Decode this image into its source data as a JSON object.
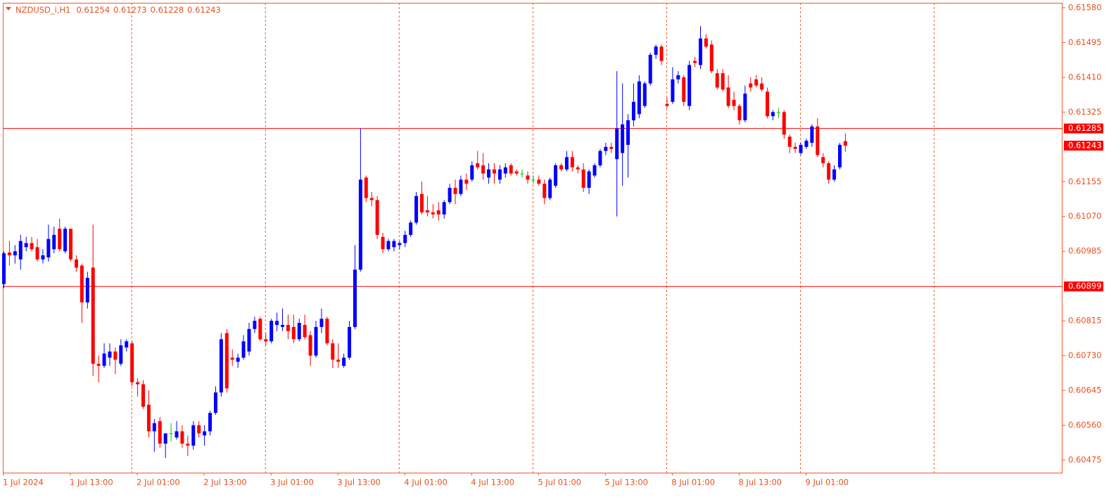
{
  "chart_data": {
    "type": "candlestick",
    "title": "NZDUSD_i,H1",
    "categories": [
      "1 Jul 2024",
      null,
      null,
      null,
      null,
      null,
      null,
      null,
      null,
      null,
      null,
      null,
      "1 Jul 13:00",
      null,
      null,
      null,
      null,
      null,
      null,
      null,
      null,
      null,
      null,
      null,
      "2 Jul 01:00",
      null,
      null,
      null,
      null,
      null,
      null,
      null,
      null,
      null,
      null,
      null,
      "2 Jul 13:00",
      null,
      null,
      null,
      null,
      null,
      null,
      null,
      null,
      null,
      null,
      null,
      "3 Jul 01:00",
      null,
      null,
      null,
      null,
      null,
      null,
      null,
      null,
      null,
      null,
      null,
      "3 Jul 13:00",
      null,
      null,
      null,
      null,
      null,
      null,
      null,
      null,
      null,
      null,
      null,
      "4 Jul 01:00",
      null,
      null,
      null,
      null,
      null,
      null,
      null,
      null,
      null,
      null,
      null,
      "4 Jul 13:00",
      null,
      null,
      null,
      null,
      null,
      null,
      null,
      null,
      null,
      null,
      null,
      "5 Jul 01:00",
      null,
      null,
      null,
      null,
      null,
      null,
      null,
      null,
      null,
      null,
      null,
      "5 Jul 13:00",
      null,
      null,
      null,
      null,
      null,
      null,
      null,
      null,
      null,
      null,
      null,
      "8 Jul 01:00",
      null,
      null,
      null,
      null,
      null,
      null,
      null,
      null,
      null,
      null,
      null,
      "8 Jul 13:00",
      null,
      null,
      null,
      null,
      null,
      null,
      null,
      null,
      null,
      null,
      null,
      "9 Jul 01:00",
      null,
      null,
      null,
      null,
      null,
      null,
      null
    ],
    "open": [
      0.60905,
      0.60982,
      0.60975,
      0.60965,
      0.60995,
      0.61005,
      0.60995,
      0.60965,
      0.6097,
      0.6099,
      0.6104,
      0.60985,
      0.6104,
      0.60965,
      0.6095,
      0.6086,
      0.60945,
      0.6071,
      0.60705,
      0.60725,
      0.6074,
      0.6071,
      0.6075,
      0.6076,
      0.60665,
      0.6066,
      0.6061,
      0.60545,
      0.6057,
      0.60515,
      0.6054,
      0.6053,
      0.60545,
      0.60515,
      0.6051,
      0.6056,
      0.60535,
      0.60545,
      0.6059,
      0.6064,
      0.60785,
      0.60725,
      0.60715,
      0.60725,
      0.6074,
      0.60795,
      0.6082,
      0.6077,
      0.60765,
      0.60805,
      0.608,
      0.60805,
      0.608,
      0.6077,
      0.60805,
      0.6078,
      0.6073,
      0.608,
      0.6082,
      0.6076,
      0.6072,
      0.60705,
      0.60725,
      0.608,
      0.6094,
      0.61165,
      0.61115,
      0.6111,
      0.6102,
      0.6099,
      0.60995,
      0.61,
      0.61005,
      0.61025,
      0.61055,
      0.61125,
      0.61085,
      0.6108,
      0.61085,
      0.61075,
      0.61105,
      0.6114,
      0.61125,
      0.6116,
      0.6116,
      0.612,
      0.61195,
      0.61165,
      0.61185,
      0.6116,
      0.61175,
      0.61195,
      0.6118,
      0.61175,
      0.6117,
      0.6116,
      0.6116,
      0.6115,
      0.61115,
      0.61145,
      0.61195,
      0.61185,
      0.61215,
      0.6119,
      0.61185,
      0.6114,
      0.6117,
      0.61195,
      0.6123,
      0.6124,
      0.6121,
      0.61225,
      0.61245,
      0.61305,
      0.6132,
      0.6134,
      0.61395,
      0.61465,
      0.61485,
      0.61345,
      0.6135,
      0.61405,
      0.6141,
      0.6134,
      0.6145,
      0.6144,
      0.61505,
      0.6149,
      0.6142,
      0.6142,
      0.61385,
      0.61355,
      0.6134,
      0.61305,
      0.61395,
      0.61405,
      0.61395,
      0.61375,
      0.61315,
      0.61325,
      0.61325,
      0.61265,
      0.6124,
      0.61225,
      0.6124,
      0.6125,
      0.6129,
      0.61215,
      0.612,
      0.6116,
      0.6119,
      0.61254
    ],
    "high": [
      0.60985,
      0.6101,
      0.61,
      0.61025,
      0.6102,
      0.6102,
      0.61015,
      0.6099,
      0.6105,
      0.61045,
      0.61065,
      0.61045,
      0.6104,
      0.60975,
      0.60955,
      0.60935,
      0.6105,
      0.6073,
      0.6076,
      0.6076,
      0.6075,
      0.6077,
      0.6077,
      0.60765,
      0.60675,
      0.6067,
      0.60645,
      0.60575,
      0.6058,
      0.6054,
      0.60565,
      0.6057,
      0.6056,
      0.60535,
      0.6057,
      0.6057,
      0.6056,
      0.60595,
      0.60655,
      0.60785,
      0.60795,
      0.60745,
      0.60735,
      0.6078,
      0.6081,
      0.60825,
      0.60825,
      0.60785,
      0.6082,
      0.60835,
      0.60845,
      0.6083,
      0.6083,
      0.6082,
      0.6083,
      0.6079,
      0.60815,
      0.60845,
      0.60825,
      0.6077,
      0.6076,
      0.60735,
      0.60815,
      0.61,
      0.61285,
      0.6117,
      0.6113,
      0.6112,
      0.6103,
      0.61015,
      0.61015,
      0.6101,
      0.61035,
      0.6106,
      0.6113,
      0.61155,
      0.6112,
      0.611,
      0.61105,
      0.6111,
      0.6115,
      0.6116,
      0.6117,
      0.61175,
      0.61205,
      0.6123,
      0.61225,
      0.612,
      0.612,
      0.61195,
      0.612,
      0.612,
      0.61185,
      0.61185,
      0.6118,
      0.6117,
      0.6117,
      0.6116,
      0.61165,
      0.612,
      0.612,
      0.6123,
      0.6123,
      0.61195,
      0.612,
      0.61185,
      0.612,
      0.61235,
      0.6125,
      0.6125,
      0.61425,
      0.61395,
      0.6132,
      0.61395,
      0.61415,
      0.614,
      0.6147,
      0.6149,
      0.6149,
      0.6136,
      0.61435,
      0.61425,
      0.61415,
      0.6145,
      0.6146,
      0.61535,
      0.61515,
      0.615,
      0.6143,
      0.6143,
      0.61415,
      0.61375,
      0.61345,
      0.6139,
      0.6141,
      0.61415,
      0.6141,
      0.61385,
      0.6133,
      0.61335,
      0.6133,
      0.6127,
      0.6125,
      0.6125,
      0.6126,
      0.61295,
      0.6131,
      0.61225,
      0.61205,
      0.61195,
      0.6125,
      0.61273
    ],
    "low": [
      0.60895,
      0.6095,
      0.60955,
      0.6094,
      0.60985,
      0.60985,
      0.6096,
      0.60955,
      0.6096,
      0.6098,
      0.60985,
      0.6098,
      0.6096,
      0.60935,
      0.6081,
      0.60845,
      0.6068,
      0.60665,
      0.607,
      0.60705,
      0.60685,
      0.60705,
      0.6074,
      0.60655,
      0.6063,
      0.606,
      0.6053,
      0.60495,
      0.60505,
      0.6048,
      0.6052,
      0.60525,
      0.60505,
      0.60485,
      0.605,
      0.6053,
      0.6051,
      0.60535,
      0.60585,
      0.6063,
      0.6064,
      0.60705,
      0.607,
      0.6072,
      0.6073,
      0.60785,
      0.60765,
      0.60755,
      0.6076,
      0.6079,
      0.6079,
      0.6077,
      0.6076,
      0.60765,
      0.6077,
      0.60705,
      0.60725,
      0.60785,
      0.60755,
      0.607,
      0.607,
      0.607,
      0.6072,
      0.60795,
      0.60935,
      0.61105,
      0.61095,
      0.61015,
      0.6098,
      0.60985,
      0.60985,
      0.6099,
      0.60995,
      0.6102,
      0.6105,
      0.61075,
      0.6107,
      0.61065,
      0.6106,
      0.61065,
      0.611,
      0.611,
      0.6112,
      0.61135,
      0.61155,
      0.61185,
      0.6116,
      0.6115,
      0.6115,
      0.6115,
      0.61165,
      0.6117,
      0.6117,
      0.61165,
      0.6115,
      0.6115,
      0.61145,
      0.611,
      0.6111,
      0.6114,
      0.6118,
      0.6118,
      0.6118,
      0.61175,
      0.6113,
      0.61125,
      0.61165,
      0.6119,
      0.6122,
      0.61225,
      0.6107,
      0.61145,
      0.61165,
      0.6129,
      0.6131,
      0.61335,
      0.6139,
      0.61455,
      0.6144,
      0.61335,
      0.61345,
      0.61395,
      0.6134,
      0.6133,
      0.61435,
      0.6143,
      0.6148,
      0.6142,
      0.6138,
      0.61375,
      0.61335,
      0.6133,
      0.61295,
      0.613,
      0.61375,
      0.61385,
      0.61375,
      0.6131,
      0.61305,
      0.6131,
      0.6126,
      0.61225,
      0.61225,
      0.6122,
      0.61235,
      0.6124,
      0.61215,
      0.6119,
      0.6115,
      0.61155,
      0.61185,
      0.61228
    ],
    "close": [
      0.6098,
      0.60975,
      0.60985,
      0.6101,
      0.61005,
      0.6099,
      0.60965,
      0.60975,
      0.61015,
      0.61025,
      0.6099,
      0.6104,
      0.60965,
      0.60945,
      0.6086,
      0.6092,
      0.6071,
      0.60705,
      0.60735,
      0.6074,
      0.6072,
      0.60755,
      0.60765,
      0.60665,
      0.6066,
      0.60605,
      0.60545,
      0.60565,
      0.60515,
      0.6054,
      0.6054,
      0.60545,
      0.60515,
      0.6051,
      0.6056,
      0.6054,
      0.60545,
      0.6059,
      0.6064,
      0.6077,
      0.6065,
      0.6072,
      0.60725,
      0.60765,
      0.60795,
      0.60815,
      0.6077,
      0.60765,
      0.60815,
      0.60815,
      0.60805,
      0.6079,
      0.6077,
      0.6081,
      0.60775,
      0.6073,
      0.608,
      0.6082,
      0.6076,
      0.6072,
      0.60715,
      0.60725,
      0.608,
      0.6094,
      0.6116,
      0.61115,
      0.6111,
      0.61025,
      0.6099,
      0.6101,
      0.6101,
      0.61005,
      0.61025,
      0.61055,
      0.6112,
      0.6108,
      0.6108,
      0.61075,
      0.61075,
      0.61105,
      0.6114,
      0.61125,
      0.6116,
      0.6115,
      0.61195,
      0.6119,
      0.61175,
      0.61185,
      0.61175,
      0.61185,
      0.6119,
      0.61175,
      0.61175,
      0.61175,
      0.6116,
      0.6116,
      0.6115,
      0.61115,
      0.6116,
      0.61195,
      0.61185,
      0.61215,
      0.6119,
      0.61185,
      0.6114,
      0.6118,
      0.61195,
      0.6123,
      0.6124,
      0.61235,
      0.61285,
      0.61295,
      0.61305,
      0.6135,
      0.614,
      0.61395,
      0.61465,
      0.61485,
      0.6145,
      0.6134,
      0.61405,
      0.61415,
      0.6135,
      0.6144,
      0.61445,
      0.61505,
      0.61485,
      0.61425,
      0.61385,
      0.6138,
      0.6134,
      0.6134,
      0.61305,
      0.6137,
      0.61385,
      0.6139,
      0.6138,
      0.61315,
      0.61325,
      0.61325,
      0.6127,
      0.6124,
      0.61235,
      0.61245,
      0.61255,
      0.6129,
      0.6122,
      0.612,
      0.6116,
      0.61185,
      0.61245,
      0.61243
    ],
    "up_color": "#0000ff",
    "down_color": "#ff0000",
    "doji_color": "#00c800",
    "ylim": [
      0.60444,
      0.61592
    ],
    "yticks": [
      {
        "value": 0.6158,
        "label": "0.61580"
      },
      0.61495,
      {
        "value": 0.6141,
        "label": "0.61410"
      },
      0.61325,
      0.61155,
      {
        "value": 0.6107,
        "label": "0.61070"
      },
      0.60985,
      0.60815,
      {
        "value": 0.6073,
        "label": "0.60730"
      },
      0.60645,
      {
        "value": 0.6056,
        "label": "0.60560"
      },
      0.60475
    ],
    "hlines": [
      0.61285,
      0.60899
    ],
    "hline_color": "#ff0000",
    "grid": true
  }
}
